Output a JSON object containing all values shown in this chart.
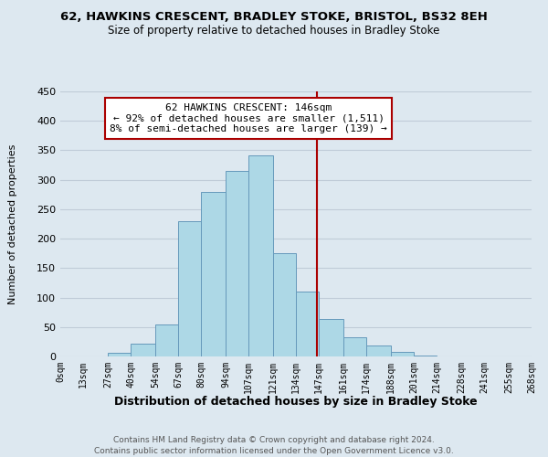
{
  "title": "62, HAWKINS CRESCENT, BRADLEY STOKE, BRISTOL, BS32 8EH",
  "subtitle": "Size of property relative to detached houses in Bradley Stoke",
  "xlabel": "Distribution of detached houses by size in Bradley Stoke",
  "ylabel": "Number of detached properties",
  "footer_line1": "Contains HM Land Registry data © Crown copyright and database right 2024.",
  "footer_line2": "Contains public sector information licensed under the Open Government Licence v3.0.",
  "bin_edges": [
    0,
    13,
    27,
    40,
    54,
    67,
    80,
    94,
    107,
    121,
    134,
    147,
    161,
    174,
    188,
    201,
    214,
    228,
    241,
    255,
    268
  ],
  "bin_labels": [
    "0sqm",
    "13sqm",
    "27sqm",
    "40sqm",
    "54sqm",
    "67sqm",
    "80sqm",
    "94sqm",
    "107sqm",
    "121sqm",
    "134sqm",
    "147sqm",
    "161sqm",
    "174sqm",
    "188sqm",
    "201sqm",
    "214sqm",
    "228sqm",
    "241sqm",
    "255sqm",
    "268sqm"
  ],
  "counts": [
    0,
    0,
    6,
    22,
    54,
    230,
    280,
    315,
    342,
    176,
    110,
    63,
    33,
    19,
    8,
    1,
    0,
    0,
    0,
    0
  ],
  "bar_color": "#add8e6",
  "bar_edgecolor": "#6699bb",
  "property_value": 146,
  "vline_color": "#aa0000",
  "annotation_title": "62 HAWKINS CRESCENT: 146sqm",
  "annotation_line2": "← 92% of detached houses are smaller (1,511)",
  "annotation_line3": "8% of semi-detached houses are larger (139) →",
  "annotation_box_edgecolor": "#aa0000",
  "annotation_box_facecolor": "#ffffff",
  "ylim": [
    0,
    450
  ],
  "yticks": [
    0,
    50,
    100,
    150,
    200,
    250,
    300,
    350,
    400,
    450
  ],
  "background_color": "#dde8f0",
  "plot_background_color": "#dde8f0",
  "grid_color": "#c0ccd8"
}
